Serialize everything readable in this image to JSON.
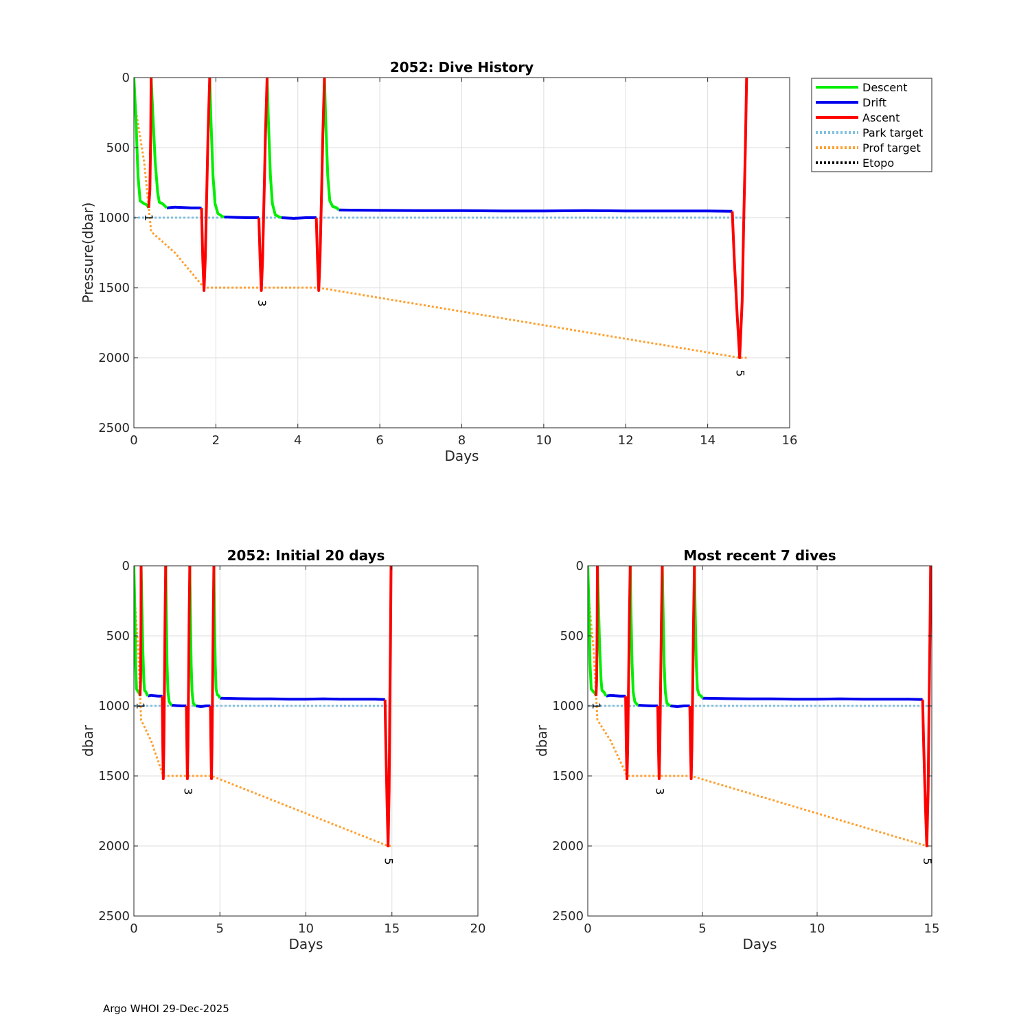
{
  "footer": "Argo WHOI 29-Dec-2025",
  "colors": {
    "descent": "#00ee00",
    "drift": "#0000ee",
    "ascent": "#ff0000",
    "park_target": "#80c0e0",
    "prof_target": "#ffa030",
    "etopo": "#000000",
    "grid": "#dddddd"
  },
  "legend": [
    {
      "label": "Descent",
      "key": "descent",
      "style": "solid"
    },
    {
      "label": "Drift",
      "key": "drift",
      "style": "solid"
    },
    {
      "label": "Ascent",
      "key": "ascent",
      "style": "solid"
    },
    {
      "label": "Park target",
      "key": "park_target",
      "style": "dotted"
    },
    {
      "label": "Prof target",
      "key": "prof_target",
      "style": "dotted"
    },
    {
      "label": "Etopo",
      "key": "etopo",
      "style": "dotted"
    }
  ],
  "chart_data": {
    "type": "line",
    "series": {
      "descent": [
        [
          [
            0.0,
            0
          ],
          [
            0.05,
            300
          ],
          [
            0.1,
            700
          ],
          [
            0.15,
            880
          ],
          [
            0.25,
            900
          ],
          [
            0.32,
            910
          ],
          [
            0.36,
            930
          ]
        ],
        [
          [
            0.42,
            0
          ],
          [
            0.46,
            250
          ],
          [
            0.52,
            600
          ],
          [
            0.58,
            820
          ],
          [
            0.62,
            890
          ],
          [
            0.7,
            900
          ],
          [
            0.8,
            930
          ]
        ],
        [
          [
            1.85,
            0
          ],
          [
            1.88,
            300
          ],
          [
            1.93,
            700
          ],
          [
            1.98,
            900
          ],
          [
            2.05,
            970
          ],
          [
            2.15,
            990
          ],
          [
            2.2,
            995
          ]
        ],
        [
          [
            3.25,
            0
          ],
          [
            3.28,
            300
          ],
          [
            3.33,
            700
          ],
          [
            3.38,
            900
          ],
          [
            3.45,
            980
          ],
          [
            3.55,
            995
          ],
          [
            3.6,
            1000
          ]
        ],
        [
          [
            4.65,
            0
          ],
          [
            4.68,
            300
          ],
          [
            4.73,
            700
          ],
          [
            4.78,
            880
          ],
          [
            4.85,
            920
          ],
          [
            4.95,
            930
          ],
          [
            5.0,
            945
          ]
        ]
      ],
      "drift": [
        [
          [
            0.8,
            930
          ],
          [
            1.0,
            925
          ],
          [
            1.2,
            928
          ],
          [
            1.4,
            930
          ],
          [
            1.6,
            930
          ],
          [
            1.65,
            932
          ]
        ],
        [
          [
            2.2,
            995
          ],
          [
            2.5,
            998
          ],
          [
            2.8,
            1000
          ],
          [
            3.05,
            1000
          ]
        ],
        [
          [
            3.6,
            1000
          ],
          [
            3.9,
            1005
          ],
          [
            4.2,
            1000
          ],
          [
            4.45,
            1000
          ]
        ],
        [
          [
            5.0,
            945
          ],
          [
            6.0,
            948
          ],
          [
            7.0,
            950
          ],
          [
            8.0,
            950
          ],
          [
            9.0,
            952
          ],
          [
            10.0,
            952
          ],
          [
            11.0,
            950
          ],
          [
            12.0,
            952
          ],
          [
            13.0,
            952
          ],
          [
            14.0,
            952
          ],
          [
            14.6,
            955
          ]
        ]
      ],
      "ascent": [
        [
          [
            0.36,
            930
          ],
          [
            0.39,
            800
          ],
          [
            0.41,
            400
          ],
          [
            0.42,
            0
          ]
        ],
        [
          [
            1.65,
            932
          ],
          [
            1.68,
            1300
          ],
          [
            1.71,
            1520
          ],
          [
            1.74,
            1300
          ],
          [
            1.78,
            800
          ],
          [
            1.81,
            400
          ],
          [
            1.85,
            0
          ]
        ],
        [
          [
            3.05,
            1000
          ],
          [
            3.08,
            1300
          ],
          [
            3.11,
            1520
          ],
          [
            3.14,
            1300
          ],
          [
            3.18,
            800
          ],
          [
            3.21,
            400
          ],
          [
            3.25,
            0
          ]
        ],
        [
          [
            4.45,
            1000
          ],
          [
            4.48,
            1300
          ],
          [
            4.51,
            1520
          ],
          [
            4.54,
            1300
          ],
          [
            4.58,
            800
          ],
          [
            4.61,
            400
          ],
          [
            4.65,
            0
          ]
        ],
        [
          [
            14.6,
            955
          ],
          [
            14.65,
            1300
          ],
          [
            14.72,
            1700
          ],
          [
            14.78,
            2000
          ],
          [
            14.84,
            1600
          ],
          [
            14.88,
            1000
          ],
          [
            14.92,
            500
          ],
          [
            14.95,
            0
          ]
        ]
      ],
      "park_target": [
        [
          0,
          1000
        ],
        [
          14.95,
          1000
        ]
      ],
      "prof_target": [
        [
          0,
          150
        ],
        [
          0.25,
          600
        ],
        [
          0.42,
          1100
        ],
        [
          1.0,
          1250
        ],
        [
          1.71,
          1500
        ],
        [
          3.11,
          1500
        ],
        [
          4.51,
          1500
        ],
        [
          14.78,
          2000
        ],
        [
          14.95,
          2000
        ]
      ],
      "etopo": []
    },
    "profile_labels": [
      {
        "text": "1",
        "x": 0.34,
        "y": 1000
      },
      {
        "text": "3",
        "x": 3.11,
        "y": 1610
      },
      {
        "text": "5",
        "x": 14.78,
        "y": 2110
      }
    ],
    "panels": [
      {
        "id": "main",
        "title": "2052: Dive History",
        "xlabel": "Days",
        "ylabel": "Pressure(dbar)",
        "xlim": [
          0,
          16
        ],
        "ylim": [
          0,
          2500
        ],
        "xticks": [
          0,
          2,
          4,
          6,
          8,
          10,
          12,
          14,
          16
        ],
        "yticks": [
          0,
          500,
          1000,
          1500,
          2000,
          2500
        ]
      },
      {
        "id": "initial",
        "title": "2052: Initial 20 days",
        "xlabel": "Days",
        "ylabel": "dbar",
        "xlim": [
          0,
          20
        ],
        "ylim": [
          0,
          2500
        ],
        "xticks": [
          0,
          5,
          10,
          15,
          20
        ],
        "yticks": [
          0,
          500,
          1000,
          1500,
          2000,
          2500
        ]
      },
      {
        "id": "recent",
        "title": "Most recent 7 dives",
        "xlabel": "Days",
        "ylabel": "dbar",
        "xlim": [
          0,
          15
        ],
        "ylim": [
          0,
          2500
        ],
        "xticks": [
          0,
          5,
          10,
          15
        ],
        "yticks": [
          0,
          500,
          1000,
          1500,
          2000,
          2500
        ]
      }
    ]
  }
}
